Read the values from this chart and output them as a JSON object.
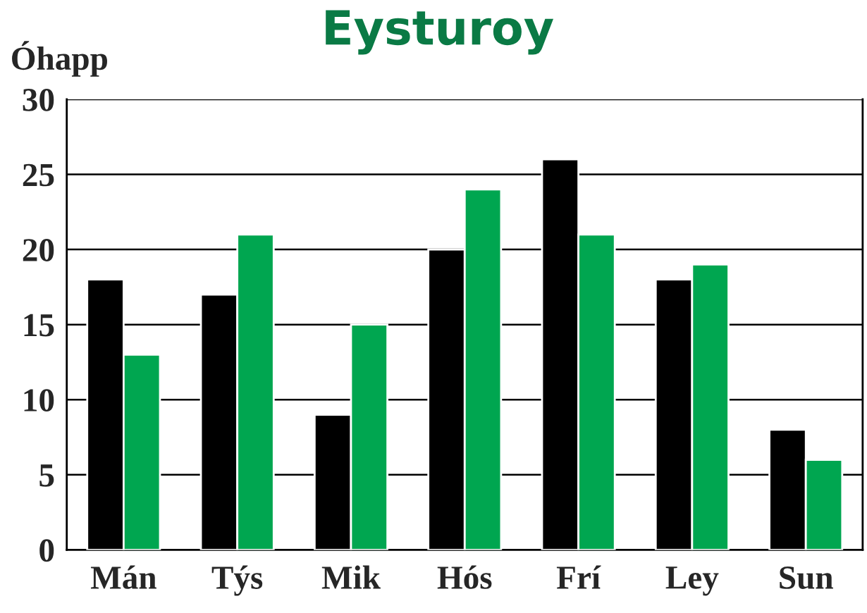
{
  "chart_data": {
    "type": "bar",
    "title": "Eysturoy",
    "ylabel": "Óhapp",
    "categories": [
      "Mán",
      "Týs",
      "Mik",
      "Hós",
      "Frí",
      "Ley",
      "Sun"
    ],
    "series": [
      {
        "color": "#000000",
        "values": [
          18,
          17,
          9,
          20,
          26,
          18,
          8
        ]
      },
      {
        "color": "#00a650",
        "values": [
          13,
          21,
          15,
          24,
          21,
          19,
          6
        ]
      }
    ],
    "ylim": [
      0,
      30
    ],
    "yticks": [
      0,
      5,
      10,
      15,
      20,
      25,
      30
    ],
    "grid": "y",
    "legend": false
  }
}
